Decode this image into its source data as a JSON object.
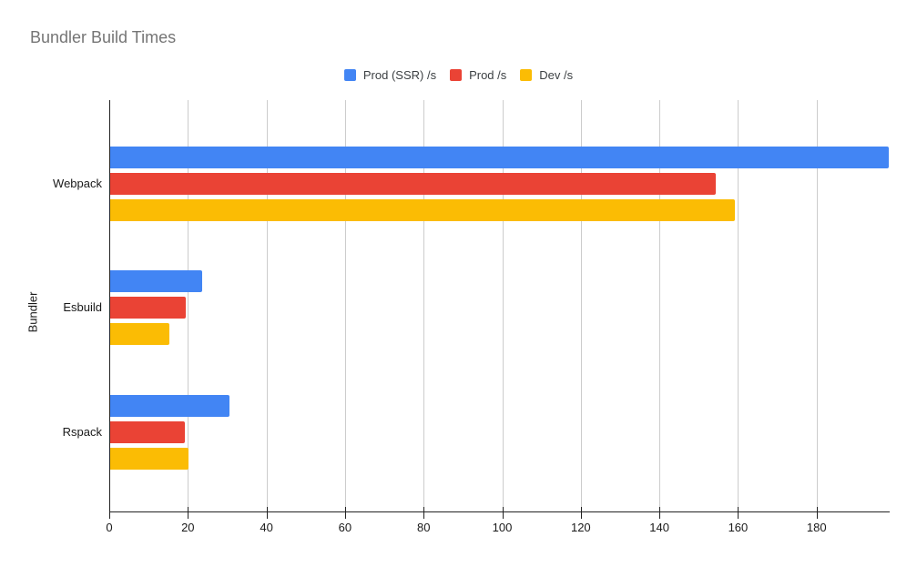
{
  "title": "Bundler Build Times",
  "colors": {
    "background": "#ffffff",
    "title": "#757575",
    "legend_text": "#3c4043",
    "label": "#1a1a1a",
    "axis": "#222222",
    "grid": "#cccccc",
    "series_blue": "#4285F4",
    "series_red": "#EA4335",
    "series_yellow": "#FBBC04"
  },
  "chart_data": {
    "type": "bar",
    "orientation": "horizontal",
    "title": "Bundler Build Times",
    "xlabel": "",
    "ylabel": "Bundler",
    "categories": [
      "Webpack",
      "Esbuild",
      "Rspack"
    ],
    "series": [
      {
        "name": "Prod (SSR) /s",
        "color": "#4285F4",
        "values": [
          198.3,
          23.7,
          30.6
        ]
      },
      {
        "name": "Prod /s",
        "color": "#EA4335",
        "values": [
          154.3,
          19.5,
          19.3
        ]
      },
      {
        "name": "Dev /s",
        "color": "#FBBC04",
        "values": [
          159.1,
          15.2,
          20.1
        ]
      }
    ],
    "xlim": [
      0,
      198.6
    ],
    "xticks": [
      0,
      20,
      40,
      60,
      80,
      100,
      120,
      140,
      160,
      180
    ],
    "grid": true,
    "legend_position": "top-center"
  }
}
